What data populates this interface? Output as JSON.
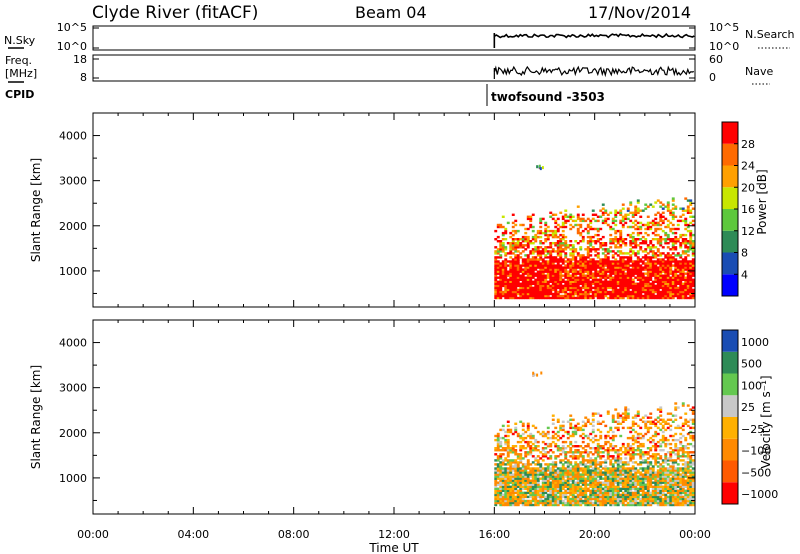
{
  "header": {
    "title": "Clyde River (fitACF)",
    "beam": "Beam 04",
    "date": "17/Nov/2014"
  },
  "top_panels": {
    "nsky_label": "N.Sky",
    "nsky_ticks": [
      "10^5",
      "10^0"
    ],
    "nsearch_label": "N.Search",
    "nsearch_ticks": [
      "10^5",
      "10^0"
    ],
    "freq_label_line1": "Freq.",
    "freq_label_line2": "[MHz]",
    "freq_ticks": [
      "18",
      "8"
    ],
    "nave_label": "Nave",
    "nave_ticks": [
      "60",
      "0"
    ],
    "cpid_label": "CPID",
    "cpid_value": "twofsound -3503"
  },
  "colors": {
    "power": [
      "#0000ff",
      "#1a4db3",
      "#2e8b57",
      "#5ec83c",
      "#c8e600",
      "#ffa000",
      "#ff6a00",
      "#ff0000"
    ],
    "velocity": [
      "#ff0000",
      "#ff5a00",
      "#ff8a00",
      "#ffb000",
      "#c8c8c8",
      "#64c850",
      "#2e8b57",
      "#1a4db3"
    ]
  },
  "chart_data": [
    {
      "type": "heatmap",
      "name": "power",
      "xlabel": "",
      "ylabel": "Slant Range [km]",
      "yticks": [
        "1000",
        "2000",
        "3000",
        "4000"
      ],
      "xlim": [
        0,
        24
      ],
      "ylim": [
        200,
        4500
      ],
      "colorbar_label": "Power [dB]",
      "colorbar_ticks": [
        "4",
        "8",
        "12",
        "16",
        "20",
        "24",
        "28"
      ],
      "colorbar_range": [
        0,
        32
      ],
      "data_start_hour": 16,
      "data_end_hour": 24
    },
    {
      "type": "heatmap",
      "name": "velocity",
      "xlabel": "Time UT",
      "ylabel": "Slant Range [km]",
      "yticks": [
        "1000",
        "2000",
        "3000",
        "4000"
      ],
      "xticks": [
        "00:00",
        "04:00",
        "08:00",
        "12:00",
        "16:00",
        "20:00",
        "00:00"
      ],
      "xlim": [
        0,
        24
      ],
      "ylim": [
        200,
        4500
      ],
      "colorbar_label": "Velocity [m s⁻¹]",
      "colorbar_ticks": [
        "1000",
        "500",
        "100",
        "25",
        "−25",
        "−100",
        "−500",
        "−1000"
      ],
      "data_start_hour": 16,
      "data_end_hour": 24
    }
  ]
}
